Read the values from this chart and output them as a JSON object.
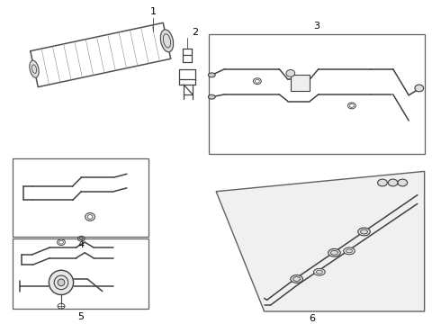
{
  "background_color": "#ffffff",
  "line_color": "#404040",
  "label_color": "#000000",
  "figsize": [
    4.9,
    3.6
  ],
  "dpi": 100
}
